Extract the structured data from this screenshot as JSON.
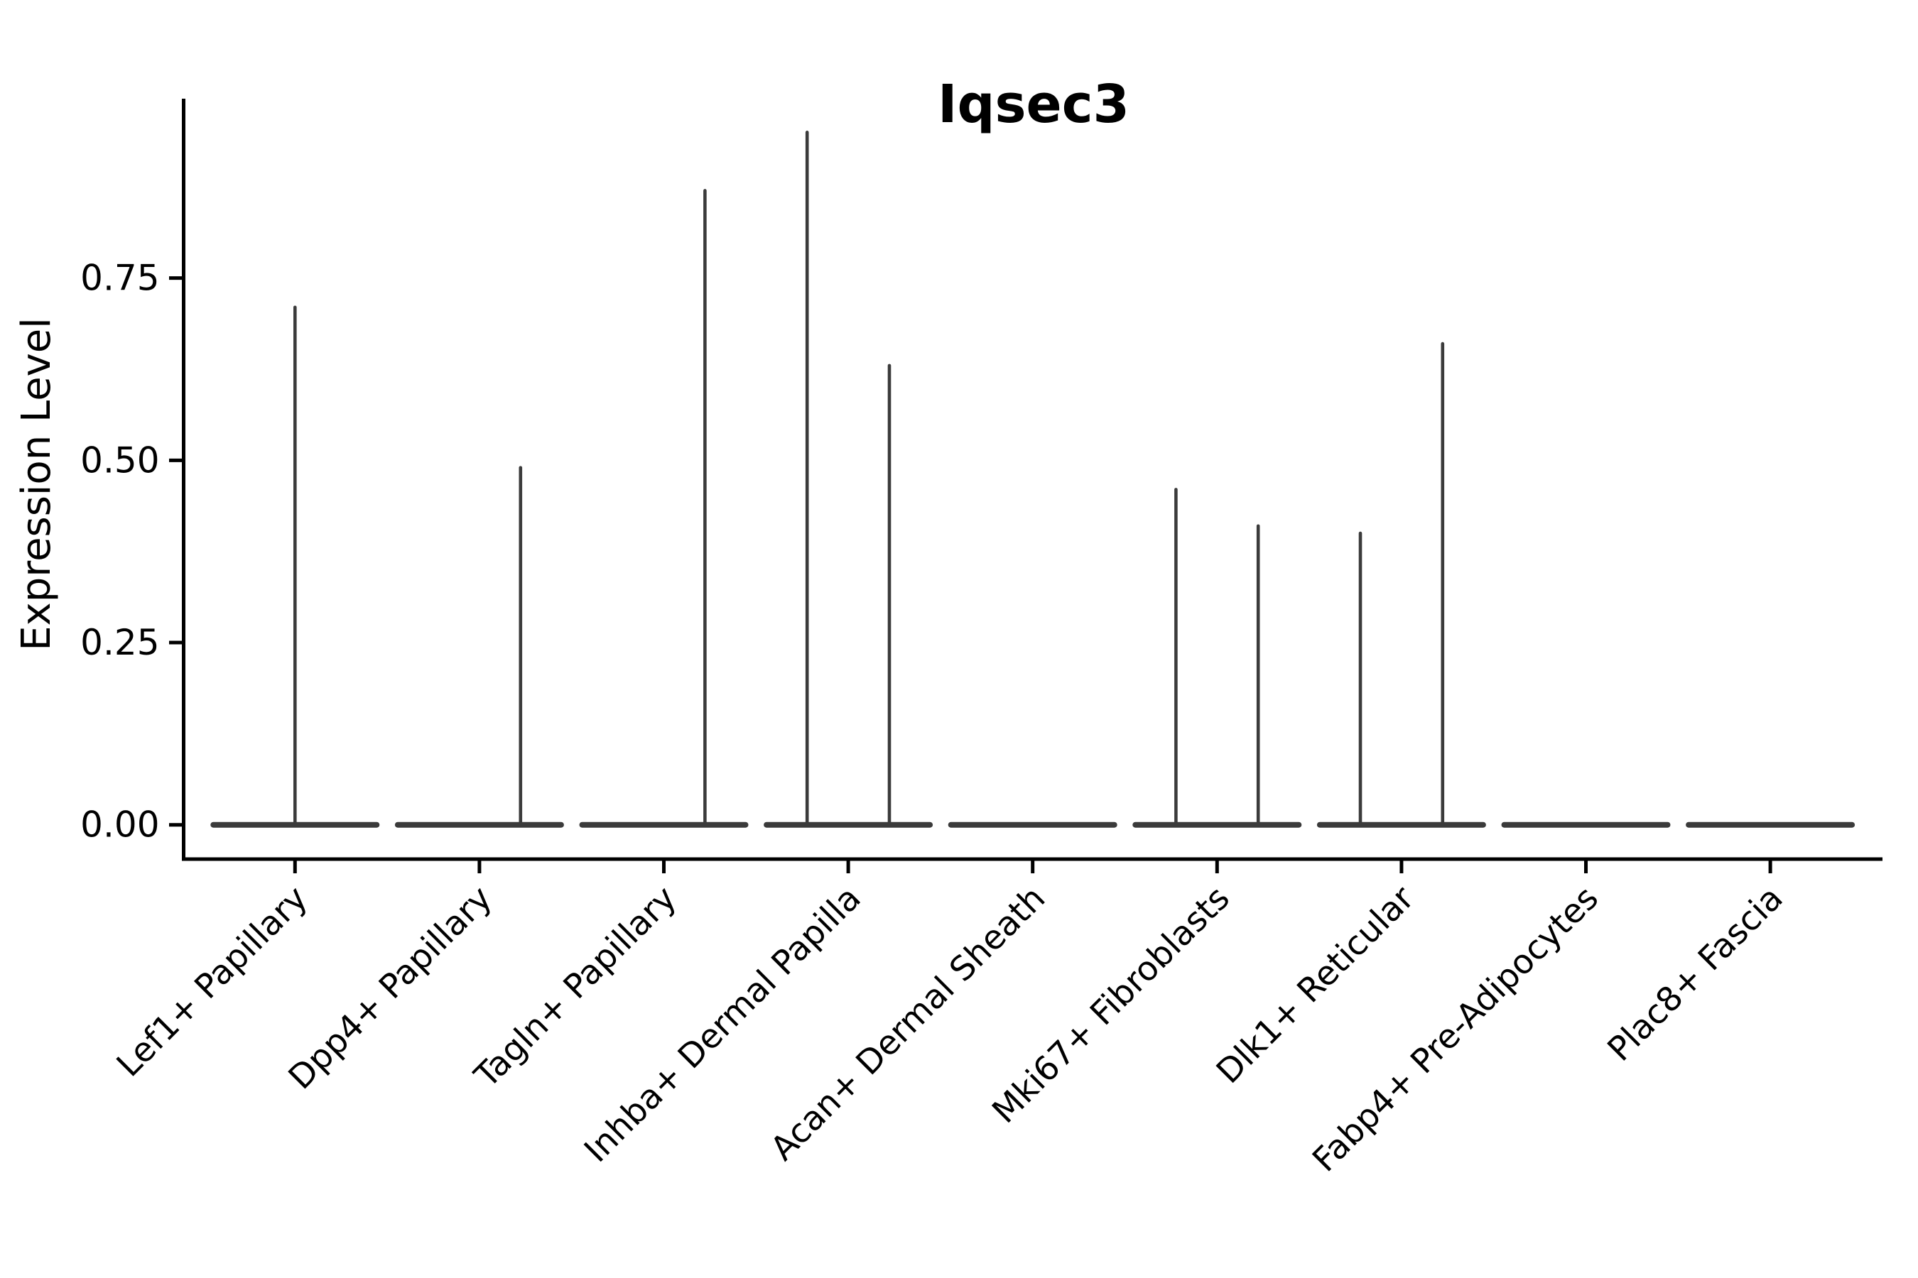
{
  "chart_data": {
    "type": "violin",
    "title": "Iqsec3",
    "xlabel": "",
    "ylabel": "Expression Level",
    "ylim": [
      0,
      1.0
    ],
    "yticks": [
      0,
      0.25,
      0.5,
      0.75
    ],
    "ytick_labels": [
      "0.00",
      "0.25",
      "0.50",
      "0.75"
    ],
    "xtick_rotation_deg": 45,
    "grid": false,
    "legend": null,
    "categories": [
      "Lef1+ Papillary",
      "Dpp4+ Papillary",
      "Tagln+ Papillary",
      "Inhba+ Dermal Papilla",
      "Acan+ Dermal Sheath",
      "Mki67+ Fibroblasts",
      "Dlk1+ Reticular",
      "Fabp4+ Pre-Adipocytes",
      "Plac8+ Fascia"
    ],
    "series": [
      {
        "category": "Lef1+ Papillary",
        "baseline_max": 0.0,
        "spikes": [
          {
            "offset_frac": 0.0,
            "max": 0.71
          }
        ]
      },
      {
        "category": "Dpp4+ Papillary",
        "baseline_max": 0.0,
        "spikes": [
          {
            "offset_frac": 0.223,
            "max": 0.49
          }
        ]
      },
      {
        "category": "Tagln+ Papillary",
        "baseline_max": 0.0,
        "spikes": [
          {
            "offset_frac": 0.223,
            "max": 0.87
          }
        ]
      },
      {
        "category": "Inhba+ Dermal Papilla",
        "baseline_max": 0.0,
        "spikes": [
          {
            "offset_frac": -0.223,
            "max": 0.95
          },
          {
            "offset_frac": 0.223,
            "max": 0.63
          }
        ]
      },
      {
        "category": "Acan+ Dermal Sheath",
        "baseline_max": 0.0,
        "spikes": []
      },
      {
        "category": "Mki67+ Fibroblasts",
        "baseline_max": 0.0,
        "spikes": [
          {
            "offset_frac": -0.223,
            "max": 0.46
          },
          {
            "offset_frac": 0.223,
            "max": 0.41
          }
        ]
      },
      {
        "category": "Dlk1+ Reticular",
        "baseline_max": 0.0,
        "spikes": [
          {
            "offset_frac": -0.223,
            "max": 0.4
          },
          {
            "offset_frac": 0.223,
            "max": 0.66
          }
        ]
      },
      {
        "category": "Fabp4+ Pre-Adipocytes",
        "baseline_max": 0.0,
        "spikes": []
      },
      {
        "category": "Plac8+ Fascia",
        "baseline_max": 0.0,
        "spikes": []
      }
    ],
    "style": {
      "ink": "#000000",
      "violin_color": "#3b3b3b",
      "background": "#ffffff"
    }
  }
}
